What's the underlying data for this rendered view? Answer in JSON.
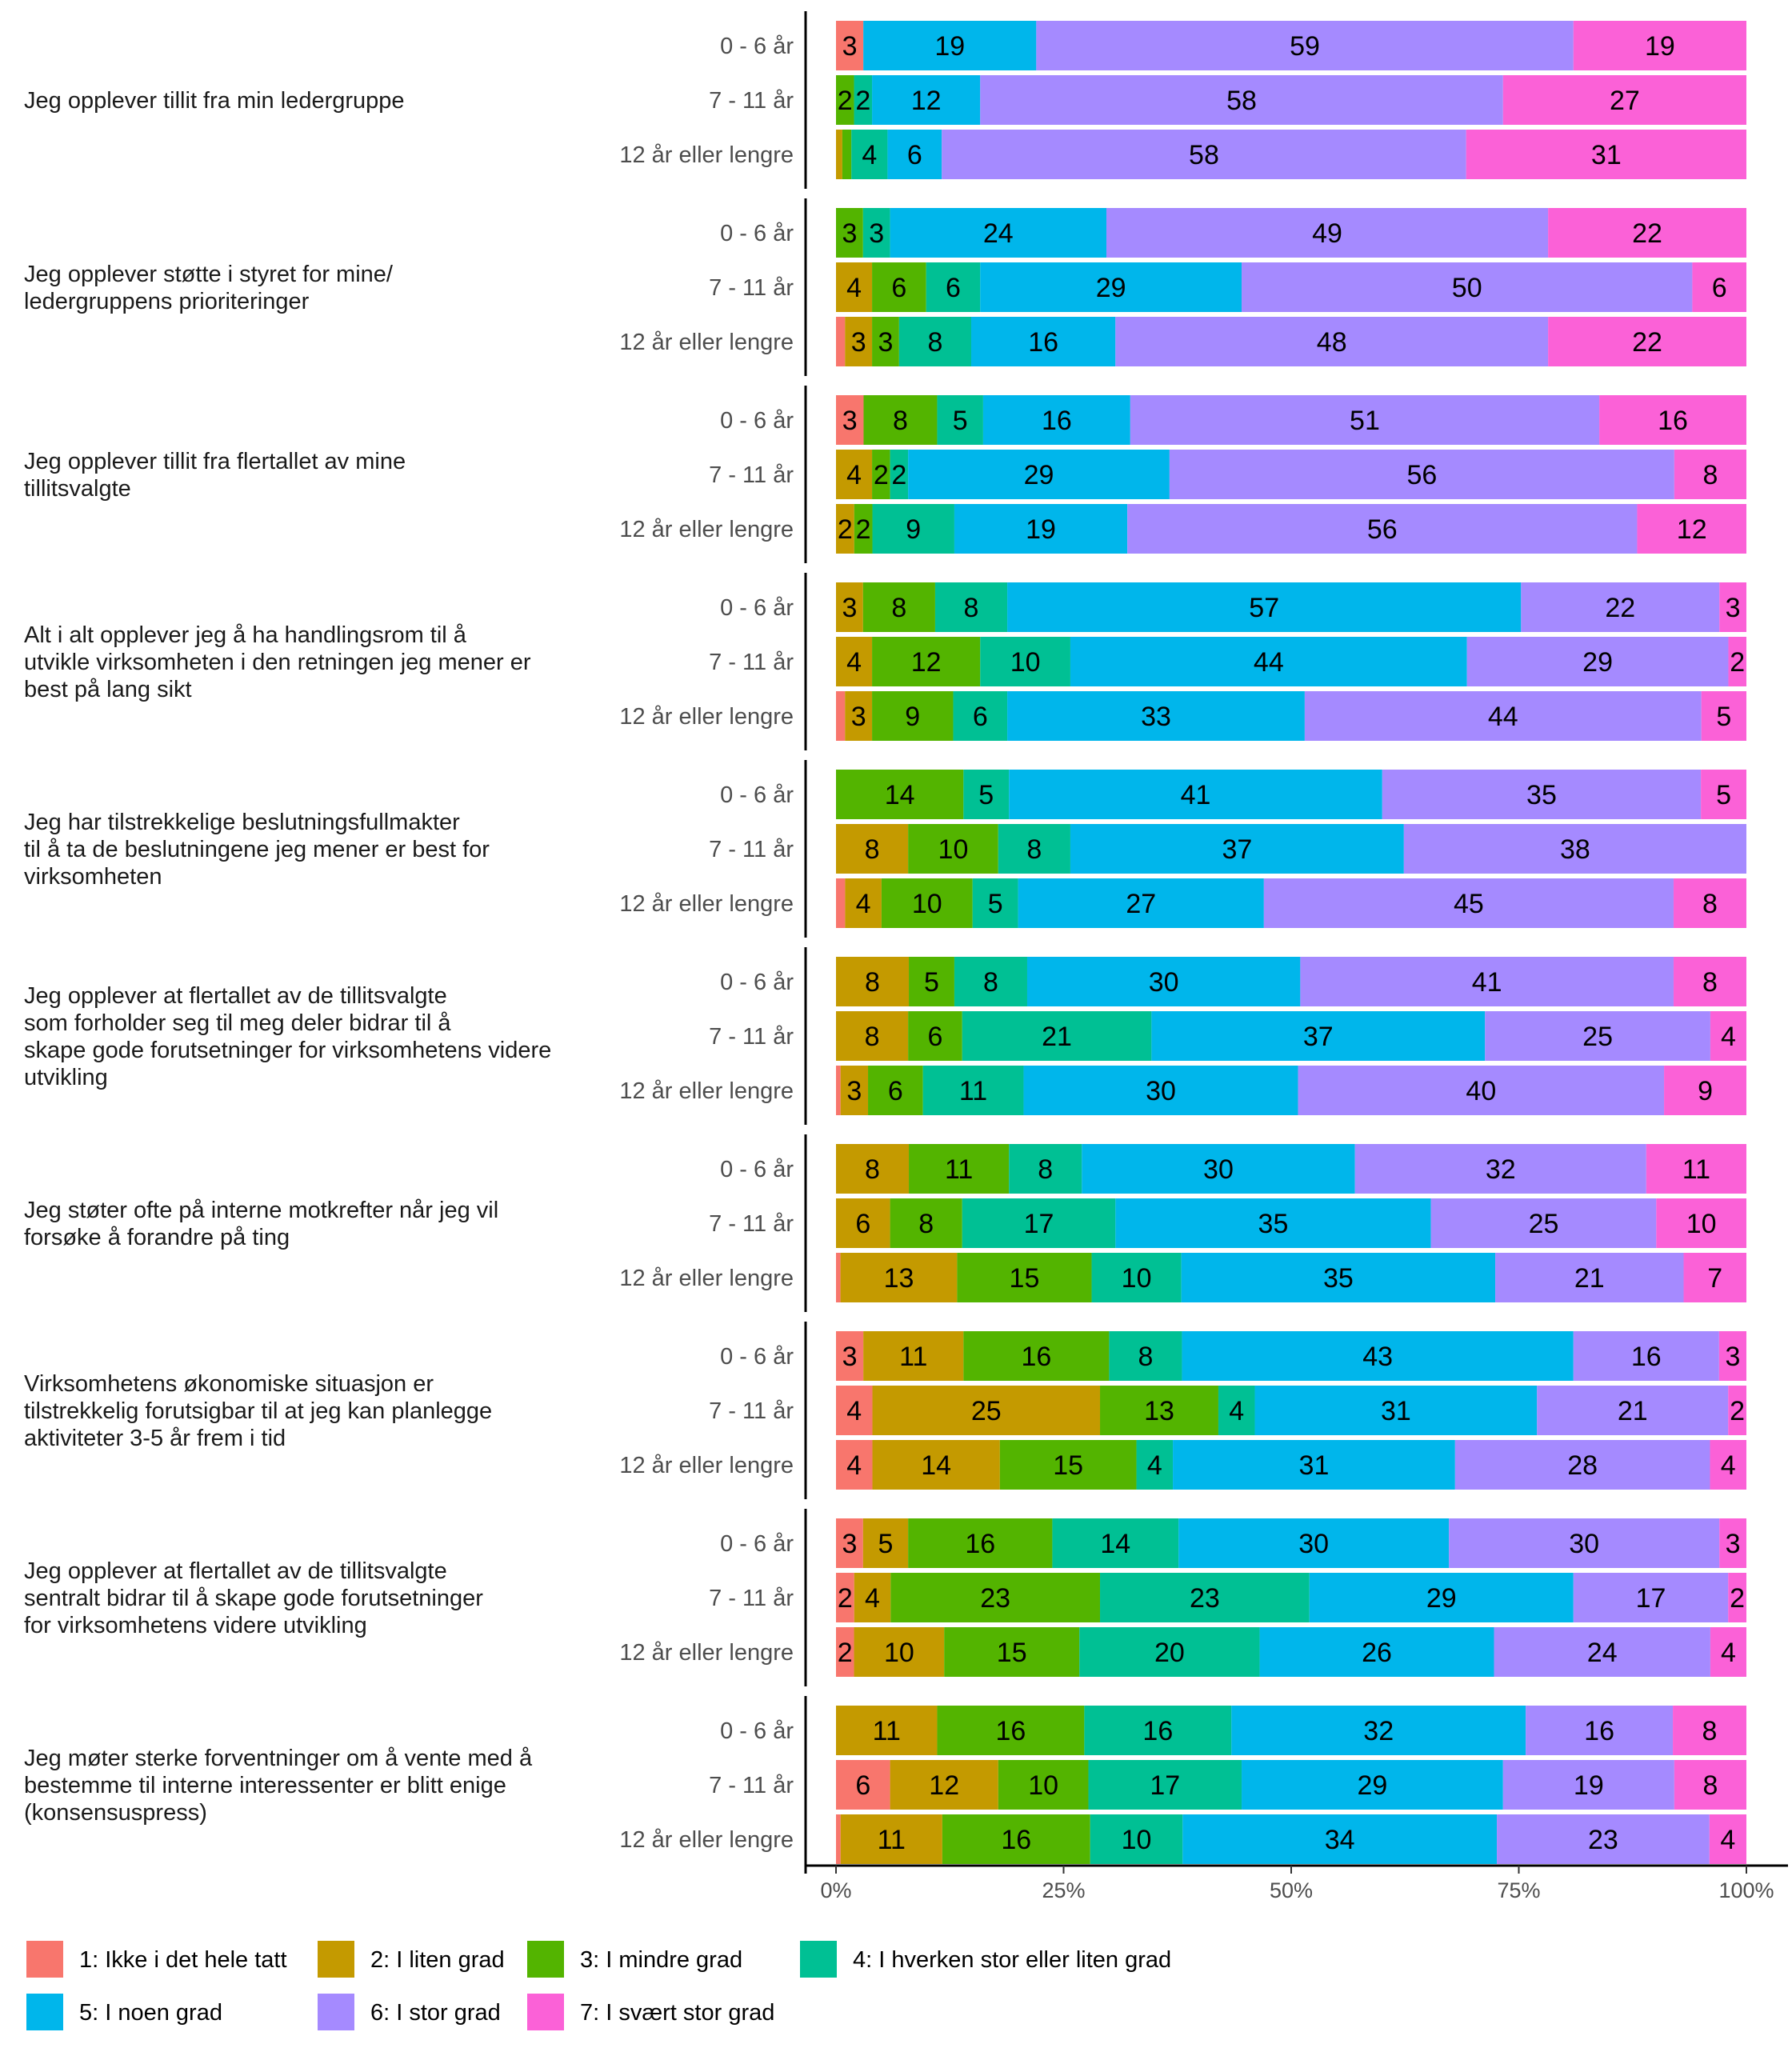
{
  "chart_data": {
    "type": "bar",
    "orientation": "horizontal-stacked-percent",
    "xlabel": "",
    "ylabel": "",
    "xlim": [
      0,
      100
    ],
    "x_ticks": [
      "0%",
      "25%",
      "50%",
      "75%",
      "100%"
    ],
    "legend_position": "bottom",
    "groups": [
      "0 - 6 år",
      "7 - 11 år",
      "12 år eller lengre"
    ],
    "series": [
      {
        "name": "1: Ikke i det hele tatt",
        "color": "#F8766D"
      },
      {
        "name": "2: I liten grad",
        "color": "#C49A00"
      },
      {
        "name": "3: I mindre grad",
        "color": "#53B400"
      },
      {
        "name": "4: I hverken stor eller liten grad",
        "color": "#00C094"
      },
      {
        "name": "5: I noen grad",
        "color": "#00B6EB"
      },
      {
        "name": "6: I stor grad",
        "color": "#A58AFF"
      },
      {
        "name": "7: I svært stor grad",
        "color": "#FB61D7"
      }
    ],
    "questions": [
      {
        "lines": [
          "Jeg opplever tillit fra min ledergruppe"
        ],
        "values": [
          [
            3,
            0,
            0,
            0,
            19,
            59,
            19
          ],
          [
            0,
            0,
            2,
            2,
            12,
            58,
            27
          ],
          [
            0,
            0.7,
            1,
            4,
            6,
            58,
            31
          ]
        ]
      },
      {
        "lines": [
          "Jeg opplever støtte i styret for mine/",
          "ledergruppens prioriteringer"
        ],
        "values": [
          [
            0,
            0,
            3,
            3,
            24,
            49,
            22
          ],
          [
            0,
            4,
            6,
            6,
            29,
            50,
            6
          ],
          [
            1,
            3,
            3,
            8,
            16,
            48,
            22
          ]
        ]
      },
      {
        "lines": [
          "Jeg opplever tillit fra flertallet av mine",
          "tillitsvalgte"
        ],
        "values": [
          [
            3,
            0,
            8,
            5,
            16,
            51,
            16
          ],
          [
            0,
            4,
            2,
            2,
            29,
            56,
            8
          ],
          [
            0,
            2,
            2,
            9,
            19,
            56,
            12
          ]
        ]
      },
      {
        "lines": [
          "Alt i alt opplever jeg å ha handlingsrom til å",
          "utvikle virksomheten i den retningen jeg mener er",
          "best på lang sikt"
        ],
        "values": [
          [
            0,
            3,
            8,
            8,
            57,
            22,
            3
          ],
          [
            0,
            4,
            12,
            10,
            44,
            29,
            2
          ],
          [
            1,
            3,
            9,
            6,
            33,
            44,
            5
          ]
        ]
      },
      {
        "lines": [
          "Jeg har tilstrekkelige beslutningsfullmakter",
          "til å ta de beslutningene jeg mener er best for",
          "virksomheten"
        ],
        "values": [
          [
            0,
            0,
            14,
            5,
            41,
            35,
            5
          ],
          [
            0,
            8,
            10,
            8,
            37,
            38,
            0
          ],
          [
            1,
            4,
            10,
            5,
            27,
            45,
            8
          ]
        ]
      },
      {
        "lines": [
          "Jeg opplever at flertallet av de tillitsvalgte",
          "som forholder seg til meg deler bidrar til å",
          "skape gode forutsetninger for virksomhetens videre",
          "utvikling"
        ],
        "values": [
          [
            0,
            8,
            5,
            8,
            30,
            41,
            8
          ],
          [
            0,
            8,
            6,
            21,
            37,
            25,
            4
          ],
          [
            0.5,
            3,
            6,
            11,
            30,
            40,
            9
          ]
        ]
      },
      {
        "lines": [
          "Jeg støter ofte på interne motkrefter når jeg vil",
          "forsøke å forandre på ting"
        ],
        "values": [
          [
            0,
            8,
            11,
            8,
            30,
            32,
            11
          ],
          [
            0,
            6,
            8,
            17,
            35,
            25,
            10
          ],
          [
            0.5,
            13,
            15,
            10,
            35,
            21,
            7
          ]
        ]
      },
      {
        "lines": [
          "Virksomhetens økonomiske situasjon er",
          "tilstrekkelig forutsigbar til at jeg kan planlegge",
          "aktiviteter 3-5 år frem i tid"
        ],
        "values": [
          [
            3,
            11,
            16,
            8,
            43,
            16,
            3
          ],
          [
            4,
            25,
            13,
            4,
            31,
            21,
            2
          ],
          [
            4,
            14,
            15,
            4,
            31,
            28,
            4
          ]
        ]
      },
      {
        "lines": [
          "Jeg opplever at flertallet av de tillitsvalgte",
          "sentralt bidrar til å skape gode forutsetninger",
          "for virksomhetens videre utvikling"
        ],
        "values": [
          [
            3,
            5,
            16,
            14,
            30,
            30,
            3
          ],
          [
            2,
            4,
            23,
            23,
            29,
            17,
            2
          ],
          [
            2,
            10,
            15,
            20,
            26,
            24,
            4
          ]
        ]
      },
      {
        "lines": [
          "Jeg møter sterke forventninger om å vente med å",
          "bestemme til interne interessenter er blitt enige",
          "(konsensuspress)"
        ],
        "values": [
          [
            0,
            11,
            16,
            16,
            32,
            16,
            8
          ],
          [
            6,
            12,
            10,
            17,
            29,
            19,
            8
          ],
          [
            0.5,
            11,
            16,
            10,
            34,
            23,
            4
          ]
        ]
      }
    ]
  }
}
